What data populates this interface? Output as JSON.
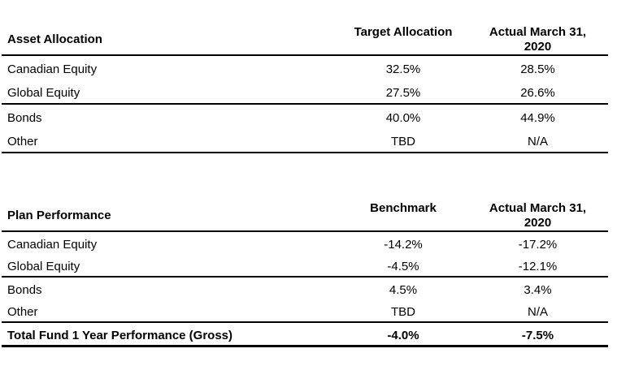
{
  "tables": [
    {
      "name": "Asset Allocation",
      "headers": [
        "Asset Allocation",
        "Target Allocation",
        "Actual March 31, 2020"
      ],
      "rows": [
        {
          "label": "Canadian Equity",
          "col1": "32.5%",
          "col2": "28.5%"
        },
        {
          "label": "Global Equity",
          "col1": "27.5%",
          "col2": "26.6%"
        },
        {
          "label": "Bonds",
          "col1": "40.0%",
          "col2": "44.9%"
        },
        {
          "label": "Other",
          "col1": "TBD",
          "col2": "N/A"
        }
      ]
    },
    {
      "name": "Plan Performance",
      "headers": [
        "Plan Performance",
        "Benchmark",
        "Actual March 31, 2020"
      ],
      "rows": [
        {
          "label": "Canadian Equity",
          "col1": "-14.2%",
          "col2": "-17.2%"
        },
        {
          "label": "Global Equity",
          "col1": "-4.5%",
          "col2": "-12.1%"
        },
        {
          "label": "Bonds",
          "col1": "4.5%",
          "col2": "3.4%"
        },
        {
          "label": "Other",
          "col1": "TBD",
          "col2": "N/A"
        }
      ],
      "total_row": {
        "label": "Total Fund 1 Year Performance (Gross)",
        "col1": "-4.0%",
        "col2": "-7.5%"
      }
    }
  ],
  "colors": {
    "background": "#ffffff",
    "text": "#000000",
    "rule": "#000000"
  }
}
